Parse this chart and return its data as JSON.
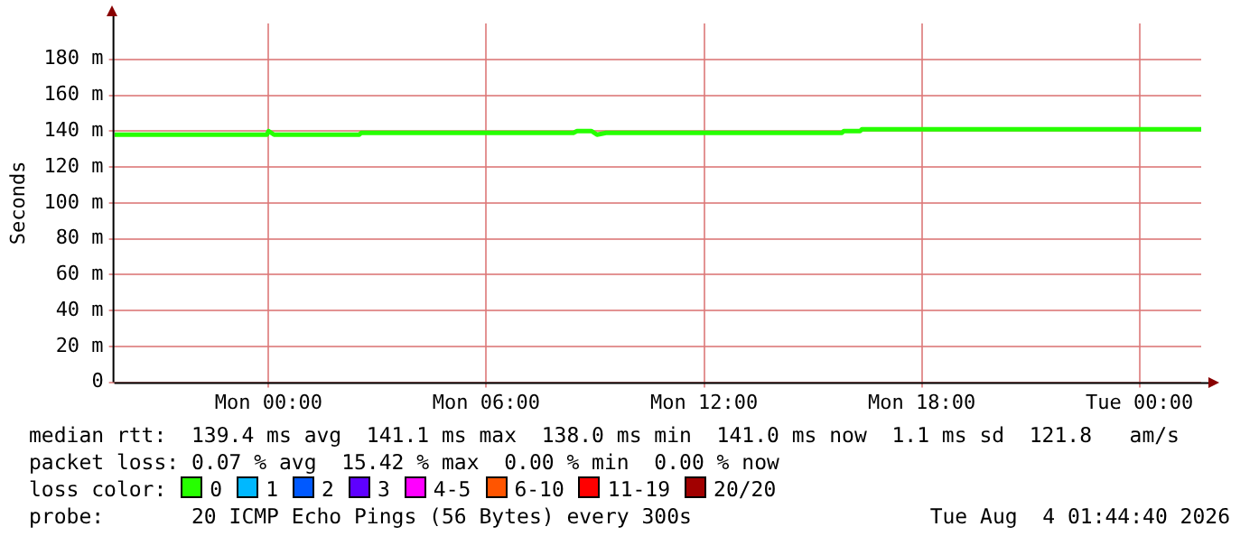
{
  "chart_data": {
    "type": "line",
    "ylabel": "Seconds",
    "legend_title": "loss color:",
    "legend": "bottom",
    "grid": true,
    "marker": "none",
    "line_style": "solid",
    "xlim": [
      "2026-08-02T19:45",
      "2026-08-04T01:42"
    ],
    "xticks": [
      {
        "value": "2026-08-03T00:00",
        "label": "Mon 00:00"
      },
      {
        "value": "2026-08-03T06:00",
        "label": "Mon 06:00"
      },
      {
        "value": "2026-08-03T12:00",
        "label": "Mon 12:00"
      },
      {
        "value": "2026-08-03T18:00",
        "label": "Mon 18:00"
      },
      {
        "value": "2026-08-04T00:00",
        "label": "Tue 00:00"
      }
    ],
    "ylim": [
      0,
      200
    ],
    "yticks": [
      {
        "value": 0,
        "label": "0"
      },
      {
        "value": 20,
        "label": "20 m"
      },
      {
        "value": 40,
        "label": "40 m"
      },
      {
        "value": 60,
        "label": "60 m"
      },
      {
        "value": 80,
        "label": "80 m"
      },
      {
        "value": 100,
        "label": "100 m"
      },
      {
        "value": 120,
        "label": "120 m"
      },
      {
        "value": 140,
        "label": "140 m"
      },
      {
        "value": 160,
        "label": "160 m"
      },
      {
        "value": 180,
        "label": "180 m"
      }
    ],
    "series": [
      {
        "name": "0",
        "color": "#26ff00",
        "x": [
          "2026-08-02T19:45",
          "2026-08-02T23:57",
          "2026-08-03T00:00",
          "2026-08-03T00:09",
          "2026-08-03T02:30",
          "2026-08-03T02:33",
          "2026-08-03T08:24",
          "2026-08-03T08:30",
          "2026-08-03T08:54",
          "2026-08-03T09:03",
          "2026-08-03T09:18",
          "2026-08-03T15:48",
          "2026-08-03T15:51",
          "2026-08-03T16:18",
          "2026-08-03T16:21",
          "2026-08-04T01:42"
        ],
        "values": [
          138,
          138,
          140,
          138,
          138,
          139,
          139,
          140,
          140,
          138,
          139,
          139,
          140,
          140,
          141,
          141
        ]
      },
      {
        "name": "1",
        "color": "#00b8ff"
      },
      {
        "name": "2",
        "color": "#0059ff"
      },
      {
        "name": "3",
        "color": "#5e00ff"
      },
      {
        "name": "4-5",
        "color": "#ff00ff"
      },
      {
        "name": "6-10",
        "color": "#ff5500"
      },
      {
        "name": "11-19",
        "color": "#ff0000"
      },
      {
        "name": "20/20",
        "color": "#a10000"
      }
    ],
    "annotations": [
      "median rtt:  139.4 ms avg  141.1 ms max  138.0 ms min  141.0 ms now  1.1 ms sd  121.8   am/s",
      "packet loss: 0.07 % avg  15.42 % max  0.00 % min  0.00 % now",
      "probe:       20 ICMP Echo Pings (56 Bytes) every 300s",
      "Tue Aug  4 01:44:40 2026"
    ]
  }
}
